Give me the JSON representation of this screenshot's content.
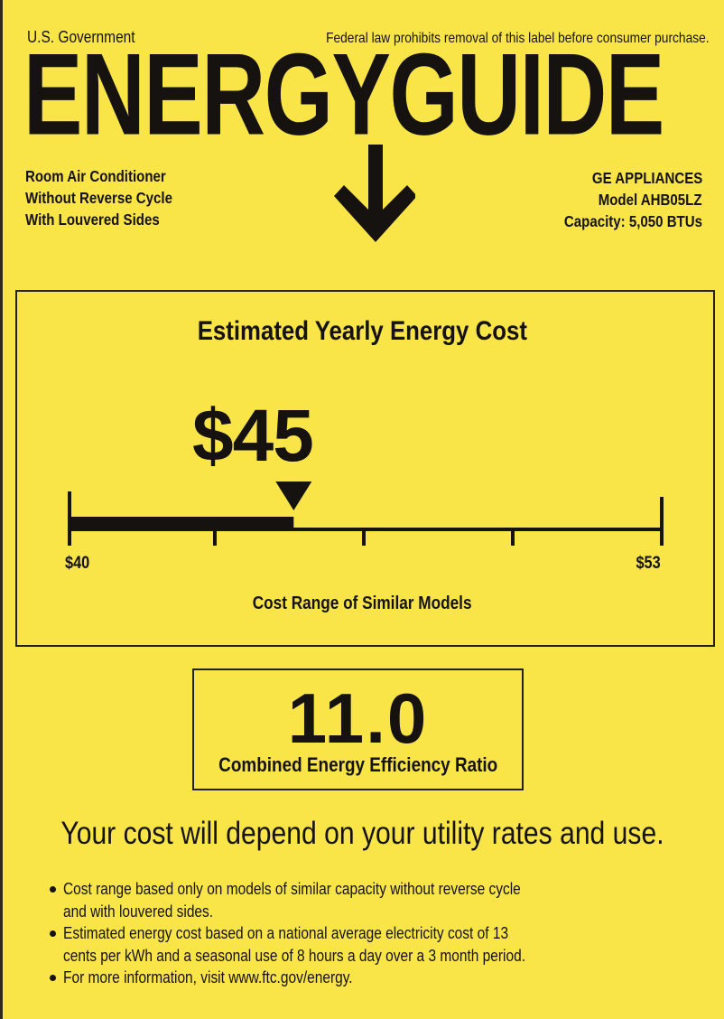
{
  "header": {
    "issuer": "U.S. Government",
    "notice": "Federal law prohibits removal of this label before consumer purchase.",
    "logo_text": "ENERGYGUIDE"
  },
  "product": {
    "lines": [
      "Room Air Conditioner",
      "Without Reverse Cycle",
      "With Louvered Sides"
    ]
  },
  "manufacturer": {
    "brand": "GE APPLIANCES",
    "model": "Model AHB05LZ",
    "capacity": "Capacity: 5,050 BTUs"
  },
  "cost": {
    "title": "Estimated Yearly Energy Cost",
    "value": "$45",
    "range_min_label": "$40",
    "range_max_label": "$53",
    "range_min": 40,
    "range_max": 53,
    "estimate": 45,
    "range_caption": "Cost Range of Similar Models"
  },
  "efficiency": {
    "value": "11.0",
    "label": "Combined Energy Efficiency Ratio"
  },
  "disclaimer": "Your cost will depend on your utility rates and use.",
  "notes": [
    [
      "Cost range based only on models of similar capacity without reverse cycle",
      "and with louvered sides."
    ],
    [
      "Estimated energy cost based on a national average electricity cost of 13",
      "cents per kWh and a seasonal use of 8 hours a day over a 3 month period."
    ],
    [
      "For more information, visit www.ftc.gov/energy."
    ]
  ],
  "colors": {
    "background": "#f9e547",
    "ink": "#151210"
  }
}
